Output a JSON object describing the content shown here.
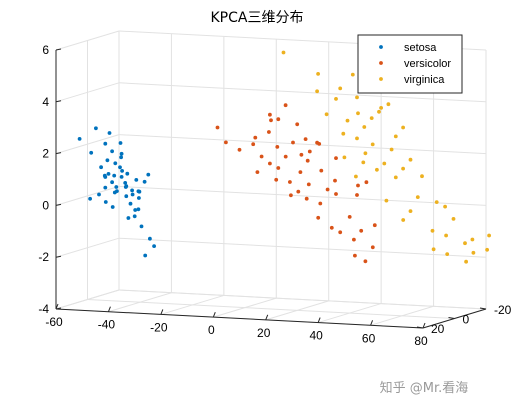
{
  "chart_data": {
    "type": "scatter",
    "title": "KPCA三维分布",
    "xlabel": "",
    "ylabel": "",
    "zlabel": "",
    "xlim": [
      -60,
      80
    ],
    "ylim": [
      -20,
      20
    ],
    "zlim": [
      -4,
      6
    ],
    "x_ticks": [
      "-60",
      "-40",
      "-20",
      "0",
      "20",
      "40",
      "60",
      "80"
    ],
    "y_ticks": [
      "-20",
      "0",
      "20"
    ],
    "z_ticks": [
      "-4",
      "-2",
      "0",
      "2",
      "4",
      "6"
    ],
    "grid": true,
    "legend_position": "top-right",
    "series": [
      {
        "name": "setosa",
        "color": "#0072BD",
        "points": [
          [
            -57,
            10,
            2.4
          ],
          [
            -52,
            8,
            2.8
          ],
          [
            -48,
            6,
            2.6
          ],
          [
            -55,
            6,
            1.8
          ],
          [
            -50,
            4,
            1.5
          ],
          [
            -47,
            4,
            1.4
          ],
          [
            -44,
            6,
            1.3
          ],
          [
            -42,
            9,
            2.3
          ],
          [
            -37,
            2,
            0.7
          ],
          [
            -38,
            -2,
            0.9
          ],
          [
            -47,
            0,
            0.8
          ],
          [
            -45,
            1,
            0.6
          ],
          [
            -44,
            2,
            0.5
          ],
          [
            -46,
            -1,
            0.4
          ],
          [
            -49,
            0,
            0.4
          ],
          [
            -52,
            2,
            0.4
          ],
          [
            -43,
            0,
            0.3
          ],
          [
            -44,
            -2,
            0.1
          ],
          [
            -47,
            -3,
            0.0
          ],
          [
            -41,
            -1,
            0.0
          ],
          [
            -50,
            -2,
            0.2
          ],
          [
            -55,
            -3,
            0.7
          ],
          [
            -53,
            0,
            -0.2
          ],
          [
            -46,
            -4,
            -0.3
          ],
          [
            -43,
            -4,
            -0.5
          ],
          [
            -48,
            -6,
            -0.9
          ],
          [
            -43,
            -6,
            -1.2
          ],
          [
            -41,
            -8,
            -1.7
          ],
          [
            -40,
            -9,
            -2.0
          ],
          [
            -44,
            -10,
            -2.4
          ],
          [
            -39,
            4,
            0.8
          ],
          [
            -56,
            5,
            0.0
          ],
          [
            -45,
            3,
            1.1
          ],
          [
            -51,
            -1,
            -0.4
          ],
          [
            -42,
            -3,
            0.2
          ],
          [
            -49,
            5,
            1.0
          ],
          [
            -50,
            1,
            0.6
          ],
          [
            -46,
            2,
            1.6
          ],
          [
            -53,
            3,
            1.2
          ],
          [
            -44,
            5,
            1.8
          ],
          [
            -48,
            3,
            0.9
          ],
          [
            -52,
            -4,
            0.1
          ],
          [
            -46,
            -7,
            -0.6
          ],
          [
            -40,
            1,
            0.3
          ],
          [
            -47,
            6,
            1.9
          ],
          [
            -55,
            1,
            0.1
          ],
          [
            -43,
            3,
            1.0
          ],
          [
            -49,
            7,
            2.2
          ],
          [
            -45,
            -5,
            -0.8
          ],
          [
            -51,
            4,
            0.9
          ]
        ]
      },
      {
        "name": "versicolor",
        "color": "#D95319",
        "points": [
          [
            -2,
            14,
            3.2
          ],
          [
            0,
            12,
            2.6
          ],
          [
            4,
            10,
            2.3
          ],
          [
            8,
            8,
            2.5
          ],
          [
            10,
            6,
            2.0
          ],
          [
            12,
            4,
            1.7
          ],
          [
            14,
            8,
            3.0
          ],
          [
            16,
            10,
            3.5
          ],
          [
            20,
            12,
            3.6
          ],
          [
            24,
            14,
            4.2
          ],
          [
            22,
            6,
            2.6
          ],
          [
            18,
            4,
            2.0
          ],
          [
            14,
            2,
            1.5
          ],
          [
            12,
            0,
            1.0
          ],
          [
            16,
            -2,
            0.9
          ],
          [
            20,
            -2,
            1.3
          ],
          [
            24,
            0,
            1.8
          ],
          [
            26,
            2,
            2.2
          ],
          [
            30,
            4,
            2.6
          ],
          [
            28,
            -2,
            1.4
          ],
          [
            22,
            -4,
            0.8
          ],
          [
            18,
            -4,
            0.5
          ],
          [
            14,
            -6,
            0.3
          ],
          [
            20,
            -6,
            0.2
          ],
          [
            24,
            -8,
            0.0
          ],
          [
            28,
            -6,
            0.6
          ],
          [
            30,
            -8,
            0.4
          ],
          [
            34,
            -10,
            -0.5
          ],
          [
            26,
            -12,
            -1.0
          ],
          [
            22,
            -10,
            -0.6
          ],
          [
            28,
            -14,
            -1.2
          ],
          [
            32,
            -16,
            -1.5
          ],
          [
            36,
            -14,
            -1.1
          ],
          [
            38,
            -18,
            -1.8
          ],
          [
            30,
            -20,
            -2.2
          ],
          [
            34,
            -20,
            -2.4
          ],
          [
            40,
            -16,
            -0.9
          ],
          [
            38,
            -8,
            0.4
          ],
          [
            44,
            -4,
            1.0
          ],
          [
            42,
            -2,
            0.9
          ],
          [
            36,
            2,
            2.0
          ],
          [
            32,
            6,
            2.6
          ],
          [
            28,
            8,
            2.8
          ],
          [
            18,
            14,
            3.8
          ],
          [
            10,
            10,
            2.8
          ],
          [
            6,
            2,
            1.3
          ],
          [
            16,
            6,
            2.4
          ],
          [
            24,
            4,
            2.1
          ],
          [
            32,
            -4,
            1.0
          ],
          [
            26,
            10,
            3.4
          ]
        ]
      },
      {
        "name": "virginica",
        "color": "#EDB120",
        "points": [
          [
            28,
            22,
            6.4
          ],
          [
            40,
            20,
            5.6
          ],
          [
            46,
            16,
            5.0
          ],
          [
            42,
            12,
            4.5
          ],
          [
            36,
            8,
            3.8
          ],
          [
            40,
            4,
            3.0
          ],
          [
            44,
            2,
            2.8
          ],
          [
            48,
            4,
            3.3
          ],
          [
            52,
            6,
            3.7
          ],
          [
            56,
            8,
            4.0
          ],
          [
            50,
            12,
            4.6
          ],
          [
            54,
            14,
            5.0
          ],
          [
            58,
            10,
            4.2
          ],
          [
            62,
            12,
            4.4
          ],
          [
            64,
            6,
            3.4
          ],
          [
            60,
            4,
            3.0
          ],
          [
            56,
            0,
            2.4
          ],
          [
            52,
            -2,
            1.8
          ],
          [
            48,
            -4,
            1.5
          ],
          [
            44,
            -2,
            1.8
          ],
          [
            40,
            -4,
            1.2
          ],
          [
            38,
            0,
            2.0
          ],
          [
            46,
            0,
            2.2
          ],
          [
            50,
            2,
            2.6
          ],
          [
            54,
            -6,
            1.2
          ],
          [
            58,
            -4,
            1.6
          ],
          [
            62,
            -2,
            2.0
          ],
          [
            64,
            -6,
            1.3
          ],
          [
            60,
            -10,
            0.4
          ],
          [
            66,
            -12,
            0.2
          ],
          [
            68,
            -14,
            0.0
          ],
          [
            70,
            -16,
            -0.5
          ],
          [
            66,
            -18,
            -1.2
          ],
          [
            62,
            -16,
            -1.0
          ],
          [
            56,
            -12,
            -0.2
          ],
          [
            72,
            -20,
            -1.5
          ],
          [
            74,
            -22,
            -1.9
          ],
          [
            76,
            -18,
            -1.3
          ],
          [
            70,
            -24,
            -2.3
          ],
          [
            64,
            -22,
            -2.0
          ],
          [
            78,
            -24,
            -1.8
          ],
          [
            80,
            -22,
            -1.2
          ],
          [
            60,
            -20,
            -1.8
          ],
          [
            52,
            -14,
            -0.6
          ],
          [
            48,
            -10,
            0.2
          ],
          [
            44,
            8,
            3.6
          ],
          [
            56,
            16,
            5.2
          ],
          [
            52,
            18,
            5.6
          ],
          [
            36,
            14,
            4.8
          ],
          [
            48,
            8,
            3.9
          ]
        ]
      }
    ]
  },
  "watermark": "知乎 @Mr.看海"
}
